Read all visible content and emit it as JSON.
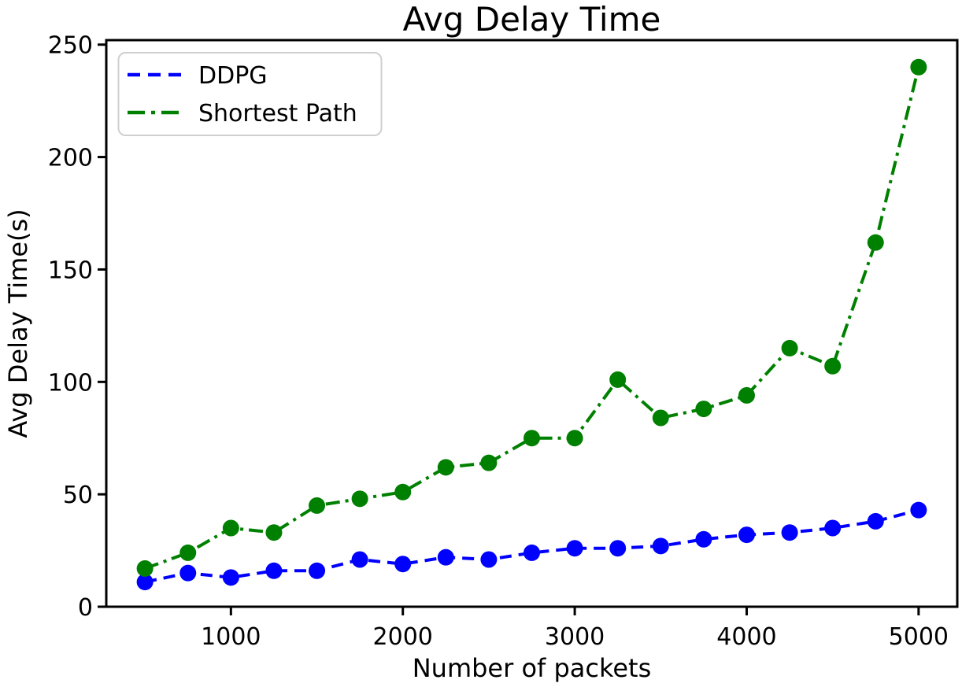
{
  "title": "Avg Delay Time",
  "axes": {
    "xlabel": "Number of packets",
    "ylabel": "Avg Delay Time(s)",
    "xtick_labels": [
      "1000",
      "2000",
      "3000",
      "4000",
      "5000"
    ],
    "ytick_labels": [
      "0",
      "50",
      "100",
      "150",
      "200",
      "250"
    ]
  },
  "legend": {
    "items": [
      {
        "label": "DDPG"
      },
      {
        "label": "Shortest Path"
      }
    ]
  },
  "colors": {
    "ddpg": "#0000ff",
    "shortest_path": "#008000",
    "axis": "#000000",
    "legend_border": "#cfcfcf",
    "background": "#ffffff"
  },
  "chart_data": {
    "type": "line",
    "title": "Avg Delay Time",
    "xlabel": "Number of packets",
    "ylabel": "Avg Delay Time(s)",
    "x": [
      500,
      750,
      1000,
      1250,
      1500,
      1750,
      2000,
      2250,
      2500,
      2750,
      3000,
      3250,
      3500,
      3750,
      4000,
      4250,
      4500,
      4750,
      5000
    ],
    "series": [
      {
        "name": "DDPG",
        "color": "#0000ff",
        "linestyle": "dashed",
        "marker": "circle",
        "values": [
          11,
          15,
          13,
          16,
          16,
          21,
          19,
          22,
          21,
          24,
          26,
          26,
          27,
          30,
          32,
          33,
          35,
          38,
          43
        ]
      },
      {
        "name": "Shortest Path",
        "color": "#008000",
        "linestyle": "dashdot",
        "marker": "circle",
        "values": [
          17,
          24,
          35,
          33,
          45,
          48,
          51,
          62,
          64,
          75,
          75,
          101,
          84,
          88,
          94,
          115,
          107,
          162,
          240
        ]
      }
    ],
    "xlim": [
      275,
      5225
    ],
    "ylim": [
      0,
      252
    ],
    "xticks": [
      1000,
      2000,
      3000,
      4000,
      5000
    ],
    "yticks": [
      0,
      50,
      100,
      150,
      200,
      250
    ],
    "grid": false,
    "legend_position": "upper left"
  }
}
